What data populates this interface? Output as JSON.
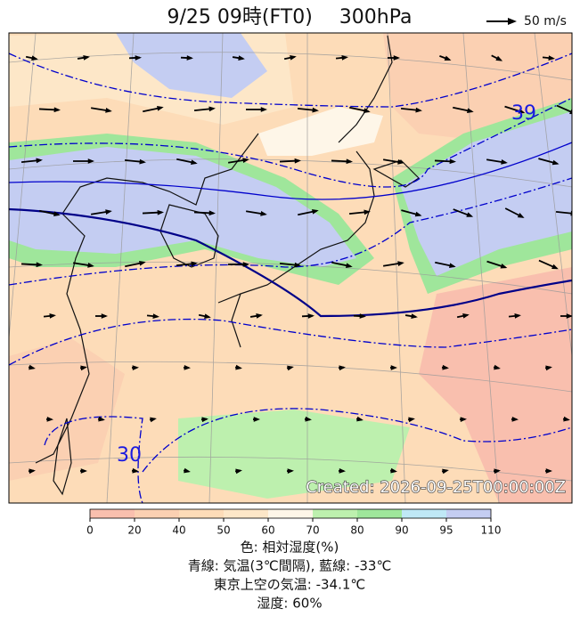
{
  "header": {
    "title": "9/25 09時(FT0)",
    "level": "300hPa",
    "wind_scale": "50 m/s"
  },
  "map": {
    "contour_labels": [
      "39",
      "30"
    ],
    "created": "Created: 2026-09-25T00:00:00Z"
  },
  "colorbar": {
    "ticks": [
      0,
      20,
      40,
      50,
      60,
      70,
      80,
      90,
      95,
      110
    ],
    "colors": [
      "#f9bfae",
      "#fbd0b2",
      "#fddcb8",
      "#fde7c8",
      "#fef6e8",
      "#bdf0ae",
      "#9fe69b",
      "#bfe8f6",
      "#c4cdf2"
    ]
  },
  "footer": {
    "lines": [
      "色: 相対湿度(%)",
      "青線: 気温(3℃間隔), 藍線: -33℃",
      "東京上空の気温: -34.1℃",
      "湿度: 60%"
    ]
  }
}
